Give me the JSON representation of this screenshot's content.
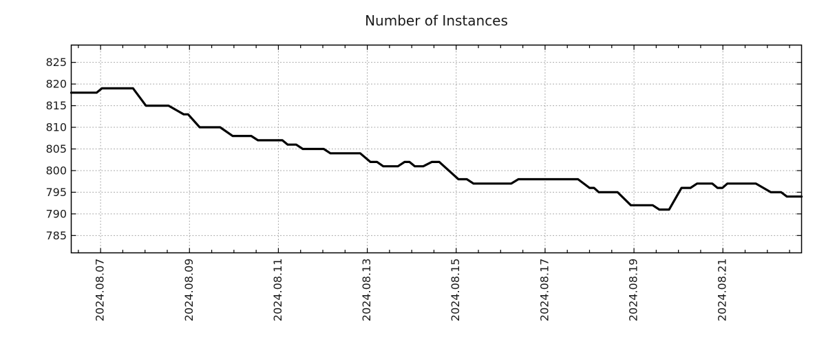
{
  "chart_data": {
    "type": "line",
    "title": "Number of Instances",
    "x_axis": {
      "unit": "date (day of August 2024)",
      "min": 6.34,
      "max": 22.77,
      "minor_tick_step": 0.5,
      "label_rotation_deg": -90,
      "major_ticks": [
        {
          "day": 7,
          "label": "2024.08.07"
        },
        {
          "day": 9,
          "label": "2024.08.09"
        },
        {
          "day": 11,
          "label": "2024.08.11"
        },
        {
          "day": 13,
          "label": "2024.08.13"
        },
        {
          "day": 15,
          "label": "2024.08.15"
        },
        {
          "day": 17,
          "label": "2024.08.17"
        },
        {
          "day": 19,
          "label": "2024.08.19"
        },
        {
          "day": 21,
          "label": "2024.08.21"
        }
      ]
    },
    "y_axis": {
      "min": 781,
      "max": 829,
      "ticks": [
        785,
        790,
        795,
        800,
        805,
        810,
        815,
        820,
        825
      ]
    },
    "grid": {
      "shown": true,
      "style": "dotted",
      "color": "#a0a0a0"
    },
    "legend": {
      "shown": false
    },
    "series": [
      {
        "name": "instances",
        "color": "#000000",
        "stroke_width": 3.2,
        "points": [
          [
            6.34,
            818
          ],
          [
            6.91,
            818
          ],
          [
            7.03,
            819
          ],
          [
            7.73,
            819
          ],
          [
            8.02,
            815
          ],
          [
            8.53,
            815
          ],
          [
            8.87,
            813
          ],
          [
            8.97,
            813
          ],
          [
            9.23,
            810
          ],
          [
            9.69,
            810
          ],
          [
            9.97,
            808
          ],
          [
            10.39,
            808
          ],
          [
            10.54,
            807
          ],
          [
            11.09,
            807
          ],
          [
            11.21,
            806
          ],
          [
            11.4,
            806
          ],
          [
            11.55,
            805
          ],
          [
            12.02,
            805
          ],
          [
            12.17,
            804
          ],
          [
            12.84,
            804
          ],
          [
            13.07,
            802
          ],
          [
            13.22,
            802
          ],
          [
            13.36,
            801
          ],
          [
            13.69,
            801
          ],
          [
            13.84,
            802
          ],
          [
            13.95,
            802
          ],
          [
            14.07,
            801
          ],
          [
            14.26,
            801
          ],
          [
            14.45,
            802
          ],
          [
            14.62,
            802
          ],
          [
            15.05,
            798
          ],
          [
            15.24,
            798
          ],
          [
            15.39,
            797
          ],
          [
            16.24,
            797
          ],
          [
            16.4,
            798
          ],
          [
            17.74,
            798
          ],
          [
            18.0,
            796
          ],
          [
            18.1,
            796
          ],
          [
            18.21,
            795
          ],
          [
            18.63,
            795
          ],
          [
            18.93,
            792
          ],
          [
            19.42,
            792
          ],
          [
            19.57,
            791
          ],
          [
            19.79,
            791
          ],
          [
            20.07,
            796
          ],
          [
            20.27,
            796
          ],
          [
            20.42,
            797
          ],
          [
            20.76,
            797
          ],
          [
            20.88,
            796
          ],
          [
            20.99,
            796
          ],
          [
            21.1,
            797
          ],
          [
            21.74,
            797
          ],
          [
            22.08,
            795
          ],
          [
            22.31,
            795
          ],
          [
            22.44,
            794
          ],
          [
            22.77,
            794
          ]
        ]
      }
    ],
    "style": {
      "background": "#ffffff",
      "axis_color": "#000000",
      "text_color": "#1a1a1a",
      "tick_label_font_size": 16
    }
  }
}
